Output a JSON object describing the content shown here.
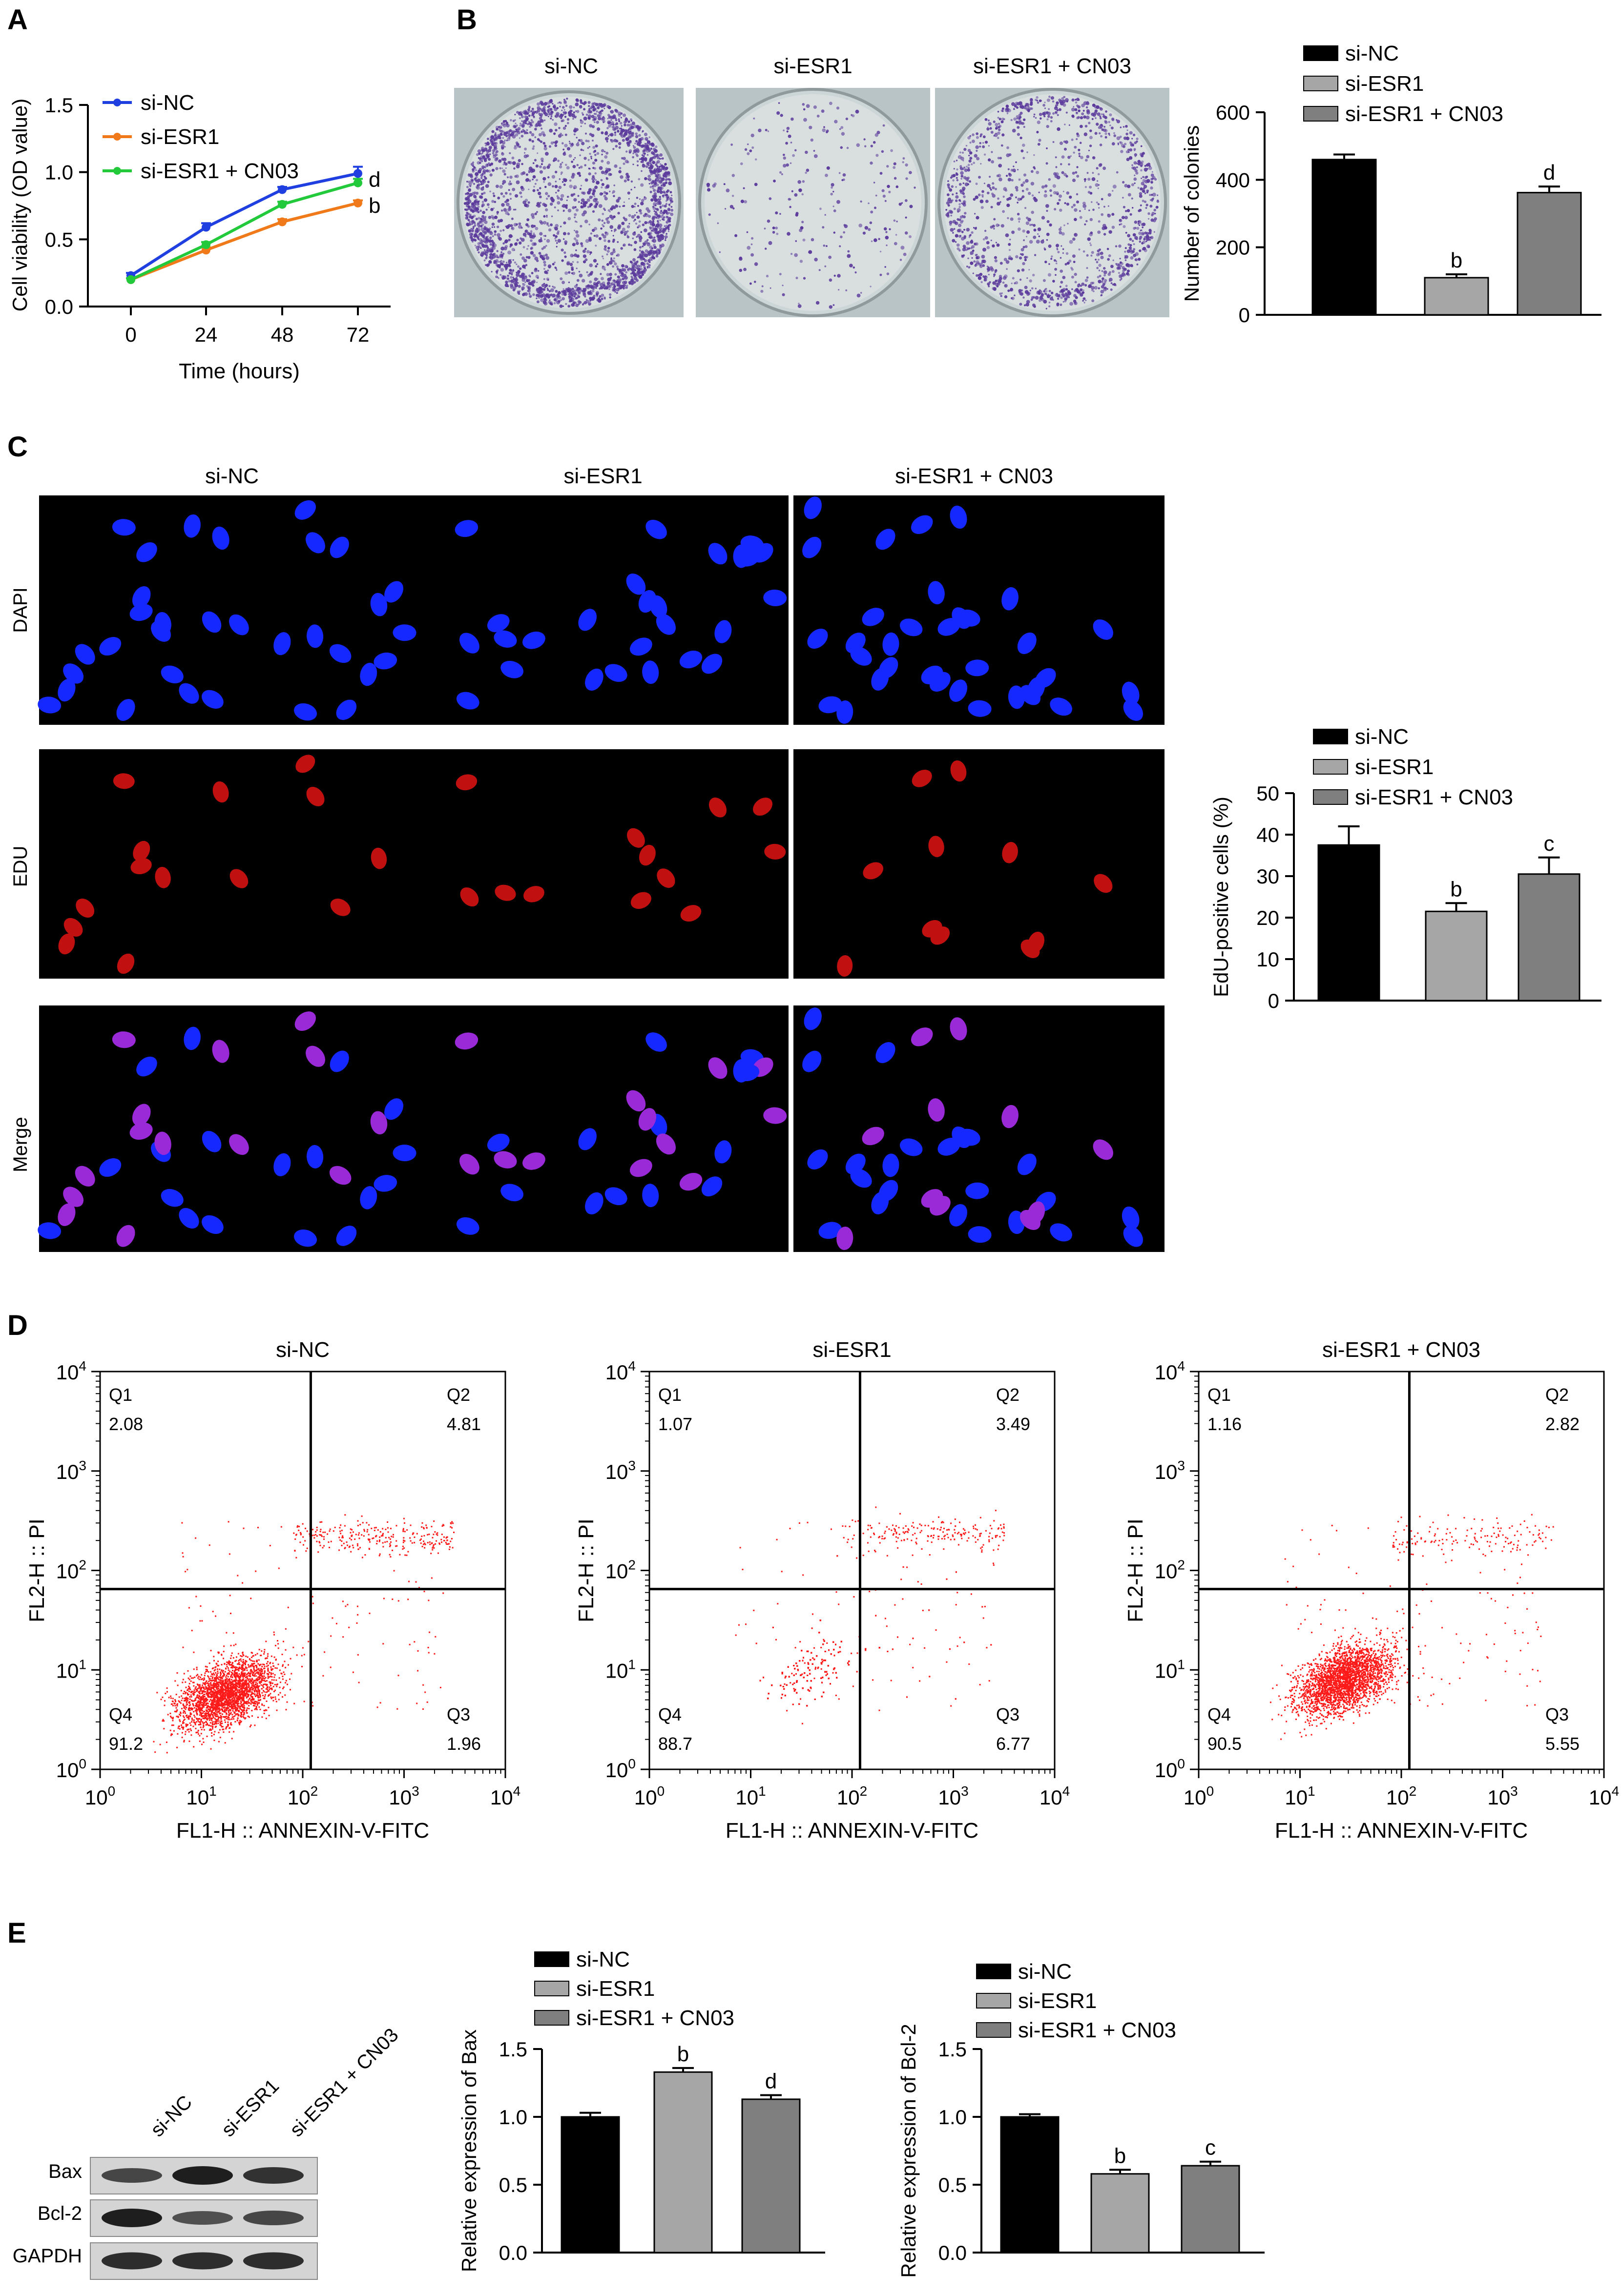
{
  "panels": {
    "A": {
      "letter": "A"
    },
    "B": {
      "letter": "B",
      "images": [
        "si-NC",
        "si-ESR1",
        "si-ESR1 + CN03"
      ]
    },
    "C": {
      "letter": "C",
      "columns": [
        "si-NC",
        "si-ESR1",
        "si-ESR1 + CN03"
      ],
      "rows": [
        "DAPI",
        "EDU",
        "Merge"
      ]
    },
    "D": {
      "letter": "D"
    },
    "E": {
      "letter": "E",
      "blot_lanes": [
        "si-NC",
        "si-ESR1",
        "si-ESR1 + CN03"
      ],
      "blot_rows": [
        "Bax",
        "Bcl-2",
        "GAPDH"
      ]
    }
  },
  "colors": {
    "si_nc_line": "#1f3fe0",
    "si_esr1_line": "#f07a1a",
    "combo_line": "#22c93a",
    "bar_black": "#000000",
    "bar_light": "#a6a6a6",
    "bar_dark": "#7f7f7f",
    "dot_red": "#ff1a1a",
    "dapi_blue": "#1428ff",
    "edu_red": "#c01010",
    "merge_purple": "#9a2ad8"
  },
  "chart_data": [
    {
      "id": "A",
      "type": "line",
      "xlabel": "Time (hours)",
      "ylabel": "Cell viability (OD value)",
      "x": [
        0,
        24,
        48,
        72
      ],
      "xticks": [
        "0",
        "24",
        "48",
        "72"
      ],
      "ylim": [
        0,
        1.5
      ],
      "yticks": [
        "0.0",
        "0.5",
        "1.0",
        "1.5"
      ],
      "legend_position": "top-left",
      "series": [
        {
          "name": "si-NC",
          "values": [
            0.23,
            0.59,
            0.87,
            0.99
          ],
          "errors": [
            0.02,
            0.03,
            0.02,
            0.05
          ],
          "annotation": ""
        },
        {
          "name": "si-ESR1",
          "values": [
            0.2,
            0.42,
            0.63,
            0.77
          ],
          "errors": [
            0.01,
            0.02,
            0.02,
            0.02
          ],
          "annotation": "b"
        },
        {
          "name": "si-ESR1 + CN03",
          "values": [
            0.2,
            0.46,
            0.76,
            0.92
          ],
          "errors": [
            0.01,
            0.02,
            0.02,
            0.03
          ],
          "annotation": "d"
        }
      ]
    },
    {
      "id": "B",
      "type": "bar",
      "ylabel": "Number of colonies",
      "categories": [
        "si-NC",
        "si-ESR1",
        "si-ESR1 + CN03"
      ],
      "values": [
        460,
        110,
        362
      ],
      "errors": [
        15,
        10,
        18
      ],
      "annotations": [
        "",
        "b",
        "d"
      ],
      "ylim": [
        0,
        600
      ],
      "yticks": [
        "0",
        "200",
        "400",
        "600"
      ],
      "legend_position": "top"
    },
    {
      "id": "C",
      "type": "bar",
      "ylabel": "EdU-positive cells (%)",
      "categories": [
        "si-NC",
        "si-ESR1",
        "si-ESR1 + CN03"
      ],
      "values": [
        37.5,
        21.5,
        30.5
      ],
      "errors": [
        4.5,
        2,
        4
      ],
      "annotations": [
        "",
        "b",
        "c"
      ],
      "ylim": [
        0,
        50
      ],
      "yticks": [
        "0",
        "10",
        "20",
        "30",
        "40",
        "50"
      ],
      "legend_position": "top"
    },
    {
      "id": "D",
      "type": "scatter",
      "xlabel": "FL1-H :: ANNEXIN-V-FITC",
      "ylabel": "FL2-H :: PI",
      "xlim": [
        1,
        10000
      ],
      "ylim": [
        1,
        10000
      ],
      "scale": "log",
      "tick_base": "10",
      "tick_exponents": [
        "0",
        "1",
        "2",
        "3",
        "4"
      ],
      "gate": {
        "x": 120,
        "y": 65
      },
      "plots": [
        {
          "title": "si-NC",
          "quadrants": {
            "Q1": "2.08",
            "Q2": "4.81",
            "Q3": "1.96",
            "Q4": "91.2"
          }
        },
        {
          "title": "si-ESR1",
          "quadrants": {
            "Q1": "1.07",
            "Q2": "3.49",
            "Q3": "6.77",
            "Q4": "88.7"
          }
        },
        {
          "title": "si-ESR1 + CN03",
          "quadrants": {
            "Q1": "1.16",
            "Q2": "2.82",
            "Q3": "5.55",
            "Q4": "90.5"
          }
        }
      ]
    },
    {
      "id": "E-Bax",
      "type": "bar",
      "ylabel": "Relative expression of Bax",
      "categories": [
        "si-NC",
        "si-ESR1",
        "si-ESR1 + CN03"
      ],
      "values": [
        1.0,
        1.33,
        1.13
      ],
      "errors": [
        0.03,
        0.03,
        0.03
      ],
      "annotations": [
        "",
        "b",
        "d"
      ],
      "ylim": [
        0,
        1.5
      ],
      "yticks": [
        "0.0",
        "0.5",
        "1.0",
        "1.5"
      ],
      "legend_position": "top"
    },
    {
      "id": "E-Bcl2",
      "type": "bar",
      "ylabel": "Relative expression of Bcl-2",
      "categories": [
        "si-NC",
        "si-ESR1",
        "si-ESR1 + CN03"
      ],
      "values": [
        1.0,
        0.58,
        0.64
      ],
      "errors": [
        0.02,
        0.03,
        0.03
      ],
      "annotations": [
        "",
        "b",
        "c"
      ],
      "ylim": [
        0,
        1.5
      ],
      "yticks": [
        "0.0",
        "0.5",
        "1.0",
        "1.5"
      ],
      "legend_position": "top"
    }
  ]
}
